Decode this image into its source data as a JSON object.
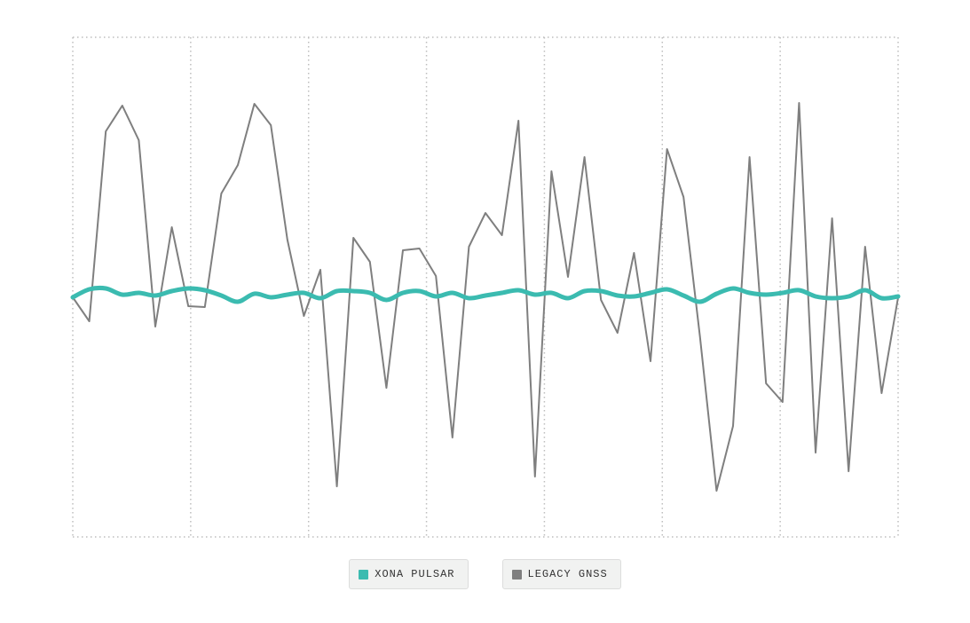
{
  "chart_data": {
    "type": "line",
    "ylim": [
      0,
      563
    ],
    "series": [
      {
        "name": "LEGACY GNSS",
        "color": "#7f7f7f",
        "values": [
          270,
          243,
          457,
          486,
          447,
          237,
          349,
          260,
          259,
          387,
          419,
          488,
          464,
          335,
          249,
          301,
          57,
          337,
          310,
          168,
          323,
          325,
          294,
          112,
          327,
          365,
          340,
          469,
          68,
          412,
          293,
          428,
          267,
          230,
          320,
          198,
          437,
          383,
          225,
          52,
          125,
          428,
          173,
          152,
          489,
          95,
          359,
          74,
          327,
          162,
          270
        ]
      },
      {
        "name": "XONA PULSAR",
        "color": "#3bbbb0",
        "values": [
          270,
          279,
          280,
          273,
          275,
          272,
          277,
          280,
          278,
          272,
          265,
          274,
          270,
          273,
          275,
          269,
          277,
          277,
          275,
          267,
          275,
          277,
          271,
          275,
          269,
          272,
          275,
          278,
          273,
          275,
          269,
          277,
          277,
          272,
          271,
          275,
          279,
          272,
          265,
          274,
          280,
          275,
          273,
          275,
          278,
          271,
          269,
          271,
          278,
          269,
          271
        ]
      }
    ]
  }
}
